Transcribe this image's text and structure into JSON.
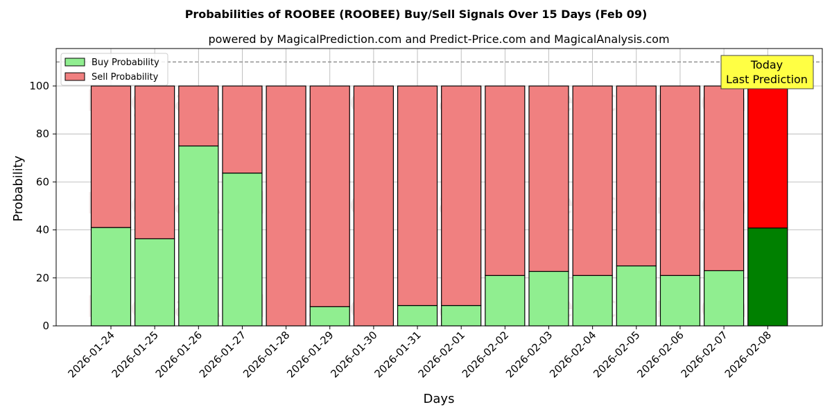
{
  "chart_data": {
    "type": "bar",
    "stacked": true,
    "title": "Probabilities of ROOBEE (ROOBEE) Buy/Sell Signals Over 15 Days (Feb 09)",
    "subtitle": "powered by MagicalPrediction.com and Predict-Price.com and MagicalAnalysis.com",
    "xlabel": "Days",
    "ylabel": "Probability",
    "ylim": [
      0,
      115
    ],
    "yticks": [
      0,
      20,
      40,
      60,
      80,
      100
    ],
    "grid": true,
    "legend_position": "upper left",
    "categories": [
      "2026-01-24",
      "2026-01-25",
      "2026-01-26",
      "2026-01-27",
      "2026-01-28",
      "2026-01-29",
      "2026-01-30",
      "2026-01-31",
      "2026-02-01",
      "2026-02-02",
      "2026-02-03",
      "2026-02-04",
      "2026-02-05",
      "2026-02-06",
      "2026-02-07",
      "2026-02-08"
    ],
    "series": [
      {
        "name": "Buy Probability",
        "color": "#90ee90",
        "highlight_color": "#008000",
        "values": [
          41,
          36.3,
          75,
          63.7,
          0,
          8,
          0,
          8.5,
          8.5,
          21,
          22.7,
          21,
          25,
          21,
          23,
          40.8
        ]
      },
      {
        "name": "Sell Probability",
        "color": "#f08080",
        "highlight_color": "#ff0000",
        "values": [
          59,
          63.7,
          25,
          36.3,
          100,
          92,
          100,
          91.5,
          91.5,
          79,
          77.3,
          79,
          75,
          79,
          77,
          59.2
        ]
      }
    ],
    "reference_line": {
      "y": 110,
      "style": "dashed",
      "color": "#808080"
    },
    "annotation": {
      "lines": [
        "Today",
        "Last Prediction"
      ],
      "bg_color": "#ffff44",
      "target_index": 15
    },
    "watermarks": [
      "MagicalAnalysis.com",
      "MagicalPrediction.com"
    ]
  }
}
